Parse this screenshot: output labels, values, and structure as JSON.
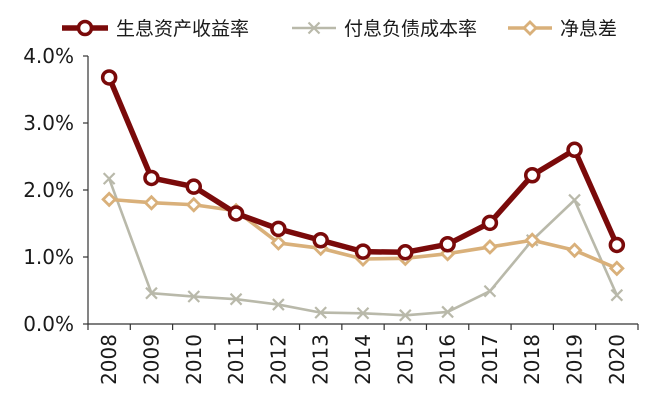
{
  "chart_data": {
    "type": "line",
    "categories": [
      "2008",
      "2009",
      "2010",
      "2011",
      "2012",
      "2013",
      "2014",
      "2015",
      "2016",
      "2017",
      "2018",
      "2019",
      "2020"
    ],
    "ylim": [
      0,
      4
    ],
    "yticks": [
      "0.0%",
      "1.0%",
      "2.0%",
      "3.0%",
      "4.0%"
    ],
    "grid": false,
    "legend_position": "top",
    "series": [
      {
        "name": "生息资产收益率",
        "color": "#7a0a0a",
        "marker": "circle",
        "values": [
          3.68,
          2.18,
          2.05,
          1.65,
          1.42,
          1.25,
          1.08,
          1.07,
          1.19,
          1.51,
          2.22,
          2.6,
          1.18
        ]
      },
      {
        "name": "付息负债成本率",
        "color": "#b9b9aa",
        "marker": "x",
        "values": [
          2.17,
          0.46,
          0.41,
          0.37,
          0.29,
          0.17,
          0.16,
          0.13,
          0.18,
          0.49,
          1.25,
          1.85,
          0.43
        ]
      },
      {
        "name": "净息差",
        "color": "#d9b07a",
        "marker": "diamond",
        "values": [
          1.86,
          1.81,
          1.78,
          1.69,
          1.21,
          1.13,
          0.97,
          0.98,
          1.05,
          1.15,
          1.25,
          1.1,
          0.83
        ]
      }
    ]
  }
}
